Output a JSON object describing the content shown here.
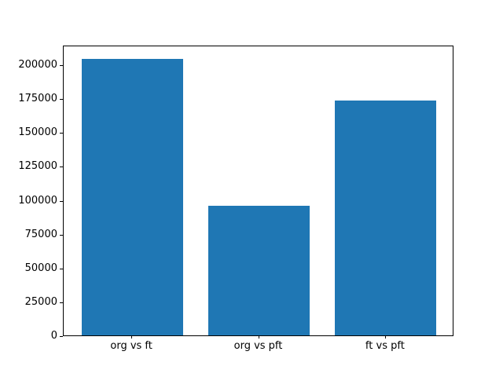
{
  "figure": {
    "background": "#ffffff"
  },
  "chart_data": {
    "type": "bar",
    "title": "",
    "xlabel": "",
    "ylabel": "",
    "categories": [
      "org vs ft",
      "org vs pft",
      "ft vs pft"
    ],
    "values": [
      204400,
      95500,
      173400
    ],
    "bar_color": "#1f77b4",
    "yticks": [
      0,
      25000,
      50000,
      75000,
      100000,
      125000,
      150000,
      175000,
      200000
    ],
    "ylim": [
      0,
      214600
    ],
    "grid": false,
    "legend": null
  }
}
